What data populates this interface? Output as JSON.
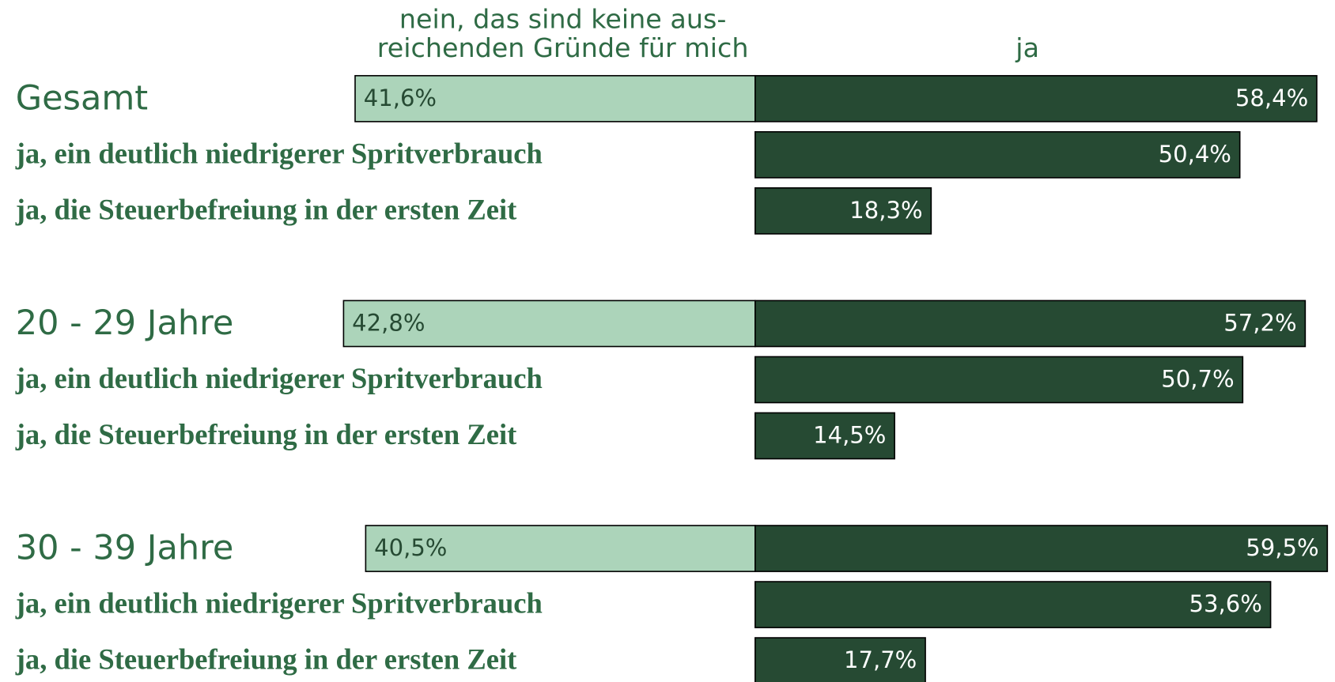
{
  "chart_data": {
    "type": "diverging-bar",
    "categories": [
      "Gesamt",
      "ja, ein deutlich niedrigerer Spritverbrauch",
      "ja, die Steuerbefreiung in der ersten Zeit",
      "20 - 29 Jahre",
      "ja, ein deutlich niedrigerer Spritverbrauch",
      "ja, die Steuerbefreiung in der ersten Zeit",
      "30 - 39 Jahre",
      "ja, ein deutlich niedrigerer Spritverbrauch",
      "ja, die Steuerbefreiung in der ersten Zeit"
    ],
    "series": [
      {
        "name": [
          "nein, das sind keine aus-",
          "reichenden Gründe für mich"
        ],
        "color": "#acd4ba",
        "side": "left",
        "values": [
          41.6,
          null,
          null,
          42.8,
          null,
          null,
          40.5,
          null,
          null
        ],
        "value_labels": [
          "41,6%",
          null,
          null,
          "42,8%",
          null,
          null,
          "40,5%",
          null,
          null
        ]
      },
      {
        "name": [
          "ja"
        ],
        "color": "#264a33",
        "side": "right",
        "values": [
          58.4,
          50.4,
          18.3,
          57.2,
          50.7,
          14.5,
          59.5,
          53.6,
          17.7
        ],
        "value_labels": [
          "58,4%",
          "50,4%",
          "18,3%",
          "57,2%",
          "50,7%",
          "14,5%",
          "59,5%",
          "53,6%",
          "17,7%"
        ]
      }
    ]
  }
}
